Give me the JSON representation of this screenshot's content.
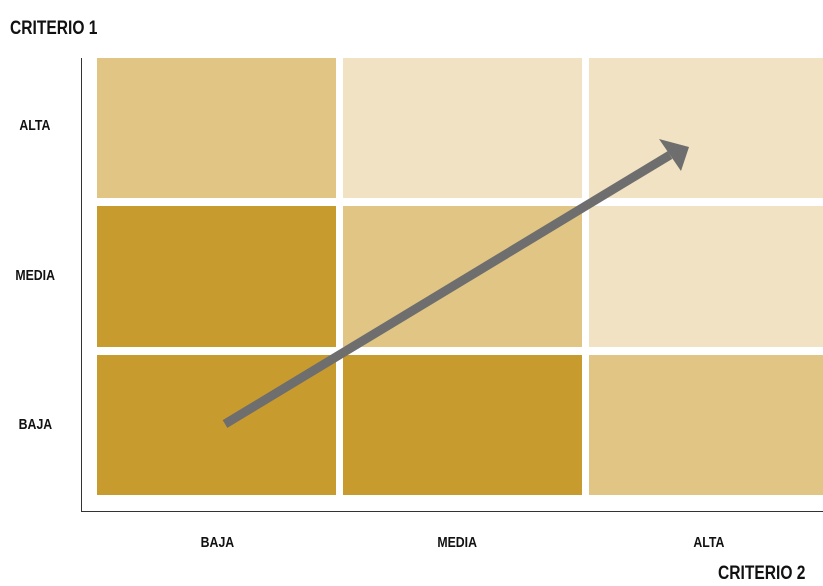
{
  "y_axis": {
    "title": "CRITERIO 1",
    "levels": [
      "ALTA",
      "MEDIA",
      "BAJA"
    ]
  },
  "x_axis": {
    "title": "CRITERIO 2",
    "levels": [
      "BAJA",
      "MEDIA",
      "ALTA"
    ]
  },
  "colors": {
    "dark": "#c89b2e",
    "medium": "#e0c584",
    "light": "#f0e2c2",
    "arrow": "#6e6e6e"
  },
  "matrix": [
    [
      "medium",
      "light",
      "light"
    ],
    [
      "dark",
      "medium",
      "light"
    ],
    [
      "dark",
      "dark",
      "medium"
    ]
  ]
}
